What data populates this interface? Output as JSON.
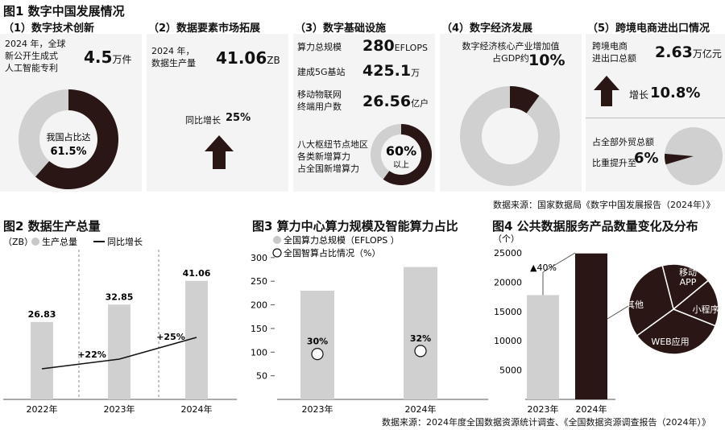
{
  "fig1": {
    "title": "图1 数字中国发展情况",
    "p1": {
      "heading": "（1）数字技术创新",
      "desc": "2024 年，全球\n新公开生成式\n人工智能专利",
      "value": "4.5",
      "unit": "万件",
      "donut_label": "我国占比达",
      "donut_value": "61.5%",
      "share": 0.615
    },
    "p2": {
      "heading": "（2）数据要素市场拓展",
      "desc": "2024 年，\n数据生产量",
      "value": "41.06",
      "unit": "ZB",
      "growth_label": "同比增长",
      "growth_value": "25%"
    },
    "p3": {
      "heading": "（3）数字基础设施",
      "rows": [
        {
          "label": "算力总规模",
          "value": "280",
          "unit": "EFLOPS"
        },
        {
          "label": "建成5G基站",
          "value": "425.1",
          "unit": "万"
        },
        {
          "label": "移动物联网\n终端用户数",
          "value": "26.56",
          "unit": "亿户"
        }
      ],
      "hub_desc": "八大枢纽节点地区\n各类新增算力\n占全国新增算力",
      "donut_value": "60%",
      "donut_sub": "以上",
      "share": 0.6
    },
    "p4": {
      "heading": "（4）数字经济发展",
      "desc": "数字经济核心产业增加值\n占GDP约",
      "value": "10%",
      "share": 0.1
    },
    "p5": {
      "heading": "（5）跨境电商进出口情况",
      "desc": "跨境电商\n进出口总额",
      "value": "2.63",
      "unit": "万亿元",
      "growth_label": "增长",
      "growth_value": "10.8%",
      "share_desc": "占全部外贸总额\n比重提升至",
      "share_value": "6%",
      "share": 0.06
    },
    "source": "数据来源：国家数据局《数字中国发展报告（2024年）》"
  },
  "fig2": {
    "title": "图2  数据生产总量",
    "legend_unit": "（ZB）",
    "legend_bar": "生产总量",
    "legend_line": "同比增长"
  },
  "fig3": {
    "title": "图3 算力中心算力规模及智能算力占比",
    "legend_bar": "全国算力总规模（EFLOPS ）",
    "legend_circle": "全国智算占比情况（%）"
  },
  "fig4": {
    "title": "图4 公共数据服务产品数量变化及分布",
    "unit": "（个）",
    "growth_note": "▲40%"
  },
  "source_bottom": "数据来源：2024年度全国数据资源统计调查、《全国数据资源调查报告（2024年）》",
  "colors": {
    "gray": "#d0d0d0",
    "dark": "#2a1715",
    "panel": "#f4f4f4"
  },
  "chart_data": [
    {
      "type": "bar",
      "title": "图2  数据生产总量",
      "categories": [
        "2022年",
        "2023年",
        "2024年"
      ],
      "values": [
        26.83,
        32.85,
        41.06
      ],
      "value_labels": [
        "26.83",
        "32.85",
        "41.06"
      ],
      "growth_labels": [
        "",
        "+22%",
        "+25%"
      ],
      "ylim": [
        0,
        50
      ],
      "ylabel": "（ZB）",
      "series": [
        {
          "name": "生产总量",
          "values": [
            26.83,
            32.85,
            41.06
          ]
        }
      ]
    },
    {
      "type": "bar",
      "title": "图3 算力中心算力规模及智能算力占比",
      "categories": [
        "2023年",
        "2024年"
      ],
      "values": [
        230,
        280
      ],
      "ticks": [
        50,
        100,
        150,
        200,
        250,
        300
      ],
      "ylim": [
        0,
        300
      ],
      "share_labels": [
        "30%",
        "32%"
      ],
      "series": [
        {
          "name": "全国算力总规模（EFLOPS ）",
          "values": [
            230,
            280
          ]
        },
        {
          "name": "全国智算占比情况（%）",
          "values": [
            30,
            32
          ]
        }
      ]
    },
    {
      "type": "bar",
      "title": "图4 公共数据服务产品数量变化及分布",
      "categories": [
        "2023年",
        "2024年"
      ],
      "values": [
        17800,
        24900
      ],
      "ticks": [
        5000,
        10000,
        15000,
        20000,
        25000
      ],
      "ylim": [
        0,
        25000
      ],
      "pie": {
        "slices": [
          {
            "label": "移动\nAPP",
            "value": 18
          },
          {
            "label": "小程序",
            "value": 17
          },
          {
            "label": "WEB应用",
            "value": 34
          },
          {
            "label": "其他",
            "value": 31
          }
        ]
      }
    }
  ]
}
